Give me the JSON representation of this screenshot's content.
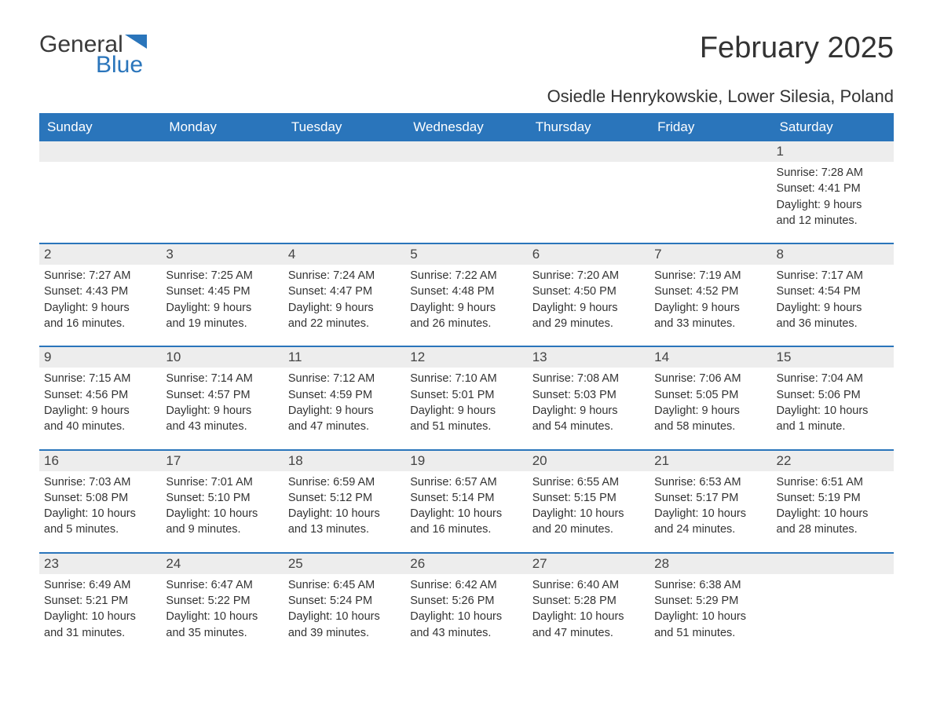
{
  "logo": {
    "text1": "General",
    "text2": "Blue"
  },
  "title": "February 2025",
  "location": "Osiedle Henrykowskie, Lower Silesia, Poland",
  "colors": {
    "header_bg": "#2a75bb",
    "header_text": "#ffffff",
    "daynum_bg": "#ededed",
    "text": "#333333",
    "logo_blue": "#2a75bb",
    "border": "#2a75bb"
  },
  "weekdays": [
    "Sunday",
    "Monday",
    "Tuesday",
    "Wednesday",
    "Thursday",
    "Friday",
    "Saturday"
  ],
  "weeks": [
    [
      null,
      null,
      null,
      null,
      null,
      null,
      {
        "num": "1",
        "sunrise": "Sunrise: 7:28 AM",
        "sunset": "Sunset: 4:41 PM",
        "daylight1": "Daylight: 9 hours",
        "daylight2": "and 12 minutes."
      }
    ],
    [
      {
        "num": "2",
        "sunrise": "Sunrise: 7:27 AM",
        "sunset": "Sunset: 4:43 PM",
        "daylight1": "Daylight: 9 hours",
        "daylight2": "and 16 minutes."
      },
      {
        "num": "3",
        "sunrise": "Sunrise: 7:25 AM",
        "sunset": "Sunset: 4:45 PM",
        "daylight1": "Daylight: 9 hours",
        "daylight2": "and 19 minutes."
      },
      {
        "num": "4",
        "sunrise": "Sunrise: 7:24 AM",
        "sunset": "Sunset: 4:47 PM",
        "daylight1": "Daylight: 9 hours",
        "daylight2": "and 22 minutes."
      },
      {
        "num": "5",
        "sunrise": "Sunrise: 7:22 AM",
        "sunset": "Sunset: 4:48 PM",
        "daylight1": "Daylight: 9 hours",
        "daylight2": "and 26 minutes."
      },
      {
        "num": "6",
        "sunrise": "Sunrise: 7:20 AM",
        "sunset": "Sunset: 4:50 PM",
        "daylight1": "Daylight: 9 hours",
        "daylight2": "and 29 minutes."
      },
      {
        "num": "7",
        "sunrise": "Sunrise: 7:19 AM",
        "sunset": "Sunset: 4:52 PM",
        "daylight1": "Daylight: 9 hours",
        "daylight2": "and 33 minutes."
      },
      {
        "num": "8",
        "sunrise": "Sunrise: 7:17 AM",
        "sunset": "Sunset: 4:54 PM",
        "daylight1": "Daylight: 9 hours",
        "daylight2": "and 36 minutes."
      }
    ],
    [
      {
        "num": "9",
        "sunrise": "Sunrise: 7:15 AM",
        "sunset": "Sunset: 4:56 PM",
        "daylight1": "Daylight: 9 hours",
        "daylight2": "and 40 minutes."
      },
      {
        "num": "10",
        "sunrise": "Sunrise: 7:14 AM",
        "sunset": "Sunset: 4:57 PM",
        "daylight1": "Daylight: 9 hours",
        "daylight2": "and 43 minutes."
      },
      {
        "num": "11",
        "sunrise": "Sunrise: 7:12 AM",
        "sunset": "Sunset: 4:59 PM",
        "daylight1": "Daylight: 9 hours",
        "daylight2": "and 47 minutes."
      },
      {
        "num": "12",
        "sunrise": "Sunrise: 7:10 AM",
        "sunset": "Sunset: 5:01 PM",
        "daylight1": "Daylight: 9 hours",
        "daylight2": "and 51 minutes."
      },
      {
        "num": "13",
        "sunrise": "Sunrise: 7:08 AM",
        "sunset": "Sunset: 5:03 PM",
        "daylight1": "Daylight: 9 hours",
        "daylight2": "and 54 minutes."
      },
      {
        "num": "14",
        "sunrise": "Sunrise: 7:06 AM",
        "sunset": "Sunset: 5:05 PM",
        "daylight1": "Daylight: 9 hours",
        "daylight2": "and 58 minutes."
      },
      {
        "num": "15",
        "sunrise": "Sunrise: 7:04 AM",
        "sunset": "Sunset: 5:06 PM",
        "daylight1": "Daylight: 10 hours",
        "daylight2": "and 1 minute."
      }
    ],
    [
      {
        "num": "16",
        "sunrise": "Sunrise: 7:03 AM",
        "sunset": "Sunset: 5:08 PM",
        "daylight1": "Daylight: 10 hours",
        "daylight2": "and 5 minutes."
      },
      {
        "num": "17",
        "sunrise": "Sunrise: 7:01 AM",
        "sunset": "Sunset: 5:10 PM",
        "daylight1": "Daylight: 10 hours",
        "daylight2": "and 9 minutes."
      },
      {
        "num": "18",
        "sunrise": "Sunrise: 6:59 AM",
        "sunset": "Sunset: 5:12 PM",
        "daylight1": "Daylight: 10 hours",
        "daylight2": "and 13 minutes."
      },
      {
        "num": "19",
        "sunrise": "Sunrise: 6:57 AM",
        "sunset": "Sunset: 5:14 PM",
        "daylight1": "Daylight: 10 hours",
        "daylight2": "and 16 minutes."
      },
      {
        "num": "20",
        "sunrise": "Sunrise: 6:55 AM",
        "sunset": "Sunset: 5:15 PM",
        "daylight1": "Daylight: 10 hours",
        "daylight2": "and 20 minutes."
      },
      {
        "num": "21",
        "sunrise": "Sunrise: 6:53 AM",
        "sunset": "Sunset: 5:17 PM",
        "daylight1": "Daylight: 10 hours",
        "daylight2": "and 24 minutes."
      },
      {
        "num": "22",
        "sunrise": "Sunrise: 6:51 AM",
        "sunset": "Sunset: 5:19 PM",
        "daylight1": "Daylight: 10 hours",
        "daylight2": "and 28 minutes."
      }
    ],
    [
      {
        "num": "23",
        "sunrise": "Sunrise: 6:49 AM",
        "sunset": "Sunset: 5:21 PM",
        "daylight1": "Daylight: 10 hours",
        "daylight2": "and 31 minutes."
      },
      {
        "num": "24",
        "sunrise": "Sunrise: 6:47 AM",
        "sunset": "Sunset: 5:22 PM",
        "daylight1": "Daylight: 10 hours",
        "daylight2": "and 35 minutes."
      },
      {
        "num": "25",
        "sunrise": "Sunrise: 6:45 AM",
        "sunset": "Sunset: 5:24 PM",
        "daylight1": "Daylight: 10 hours",
        "daylight2": "and 39 minutes."
      },
      {
        "num": "26",
        "sunrise": "Sunrise: 6:42 AM",
        "sunset": "Sunset: 5:26 PM",
        "daylight1": "Daylight: 10 hours",
        "daylight2": "and 43 minutes."
      },
      {
        "num": "27",
        "sunrise": "Sunrise: 6:40 AM",
        "sunset": "Sunset: 5:28 PM",
        "daylight1": "Daylight: 10 hours",
        "daylight2": "and 47 minutes."
      },
      {
        "num": "28",
        "sunrise": "Sunrise: 6:38 AM",
        "sunset": "Sunset: 5:29 PM",
        "daylight1": "Daylight: 10 hours",
        "daylight2": "and 51 minutes."
      },
      null
    ]
  ]
}
